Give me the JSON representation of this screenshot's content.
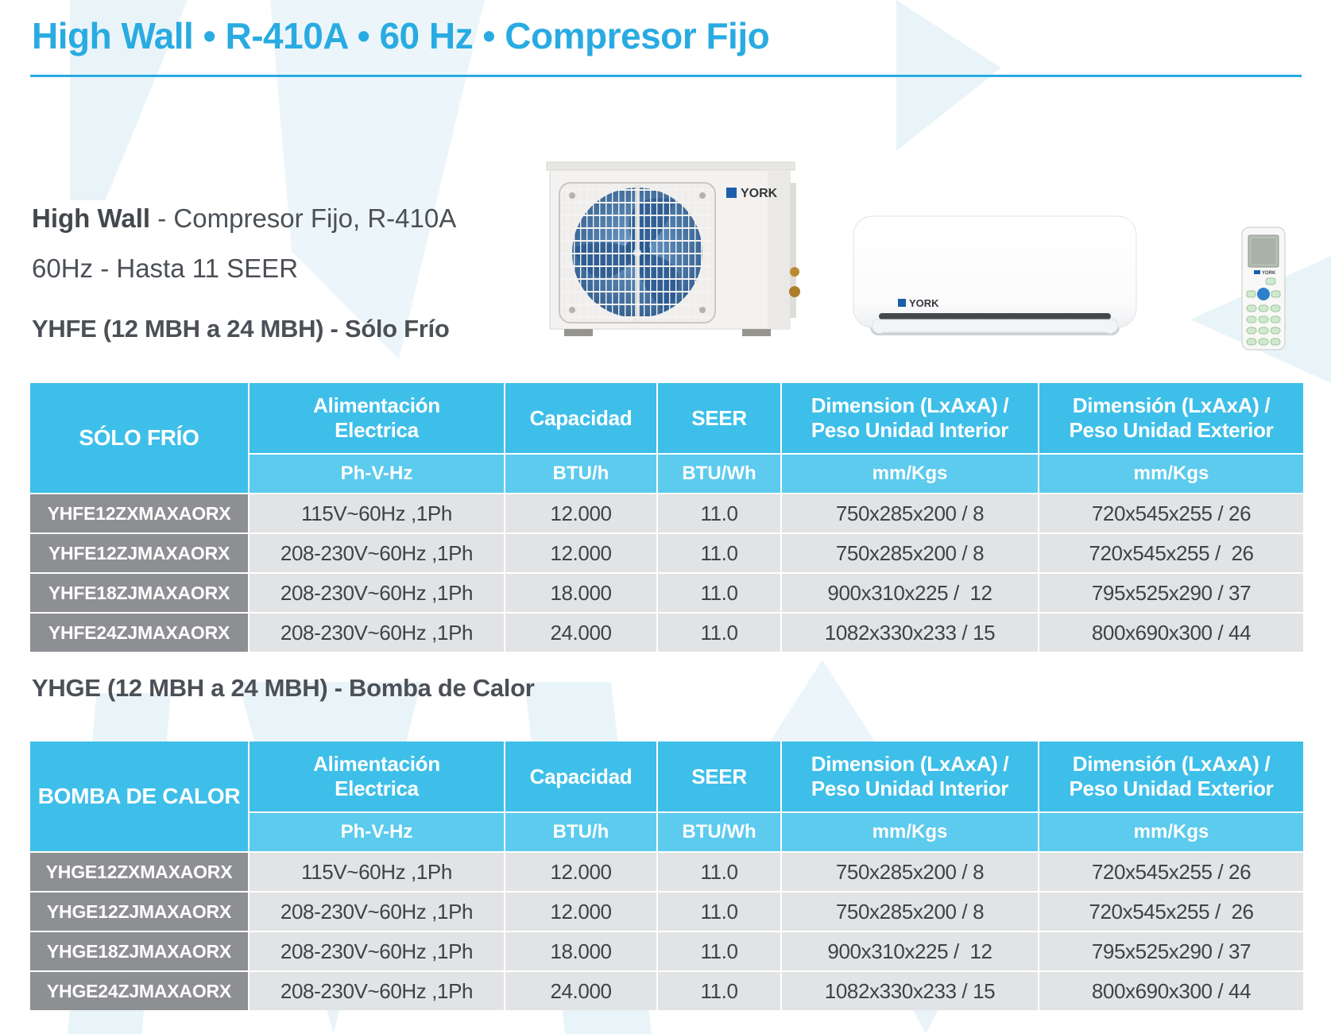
{
  "page": {
    "title": "High Wall • R-410A • 60 Hz • Compresor Fijo"
  },
  "intro": {
    "bold": "High Wall",
    "rest": " - Compresor Fijo, R-410A",
    "line2": "60Hz - Hasta 11 SEER"
  },
  "brand": {
    "logo_text": "YORK"
  },
  "colors": {
    "accent": "#29abe2",
    "header_blue": "#3ebfe9",
    "subheader_blue": "#5ccbee",
    "model_gray": "#8d8f92",
    "row_gray": "#e2e3e4"
  },
  "sections": [
    {
      "heading": "YHFE (12 MBH a 24 MBH) - Sólo Frío",
      "table": {
        "corner": "SÓLO FRÍO",
        "headers": [
          "Alimentación Electrica",
          "Capacidad",
          "SEER",
          "Dimension (LxAxA) / Peso Unidad Interior",
          "Dimensión (LxAxA) / Peso Unidad Exterior"
        ],
        "units": [
          "Ph-V-Hz",
          "BTU/h",
          "BTU/Wh",
          "mm/Kgs",
          "mm/Kgs"
        ],
        "rows": [
          {
            "model": "YHFE12ZXMAXAORX",
            "cells": [
              "115V~60Hz ,1Ph",
              "12.000",
              "11.0",
              "750x285x200 / 8",
              "720x545x255 / 26"
            ]
          },
          {
            "model": "YHFE12ZJMAXAORX",
            "cells": [
              "208-230V~60Hz ,1Ph",
              "12.000",
              "11.0",
              "750x285x200 / 8",
              "720x545x255 /  26"
            ]
          },
          {
            "model": "YHFE18ZJMAXAORX",
            "cells": [
              "208-230V~60Hz ,1Ph",
              "18.000",
              "11.0",
              "900x310x225 /  12",
              "795x525x290 / 37"
            ]
          },
          {
            "model": "YHFE24ZJMAXAORX",
            "cells": [
              "208-230V~60Hz ,1Ph",
              "24.000",
              "11.0",
              "1082x330x233 / 15",
              "800x690x300 / 44"
            ]
          }
        ]
      }
    },
    {
      "heading": "YHGE (12 MBH a 24 MBH) - Bomba de Calor",
      "table": {
        "corner": "BOMBA DE CALOR",
        "headers": [
          "Alimentación Electrica",
          "Capacidad",
          "SEER",
          "Dimension (LxAxA) / Peso Unidad Interior",
          "Dimensión (LxAxA) / Peso Unidad Exterior"
        ],
        "units": [
          "Ph-V-Hz",
          "BTU/h",
          "BTU/Wh",
          "mm/Kgs",
          "mm/Kgs"
        ],
        "rows": [
          {
            "model": "YHGE12ZXMAXAORX",
            "cells": [
              "115V~60Hz ,1Ph",
              "12.000",
              "11.0",
              "750x285x200 / 8",
              "720x545x255 / 26"
            ]
          },
          {
            "model": "YHGE12ZJMAXAORX",
            "cells": [
              "208-230V~60Hz ,1Ph",
              "12.000",
              "11.0",
              "750x285x200 / 8",
              "720x545x255 /  26"
            ]
          },
          {
            "model": "YHGE18ZJMAXAORX",
            "cells": [
              "208-230V~60Hz ,1Ph",
              "18.000",
              "11.0",
              "900x310x225 /  12",
              "795x525x290 / 37"
            ]
          },
          {
            "model": "YHGE24ZJMAXAORX",
            "cells": [
              "208-230V~60Hz ,1Ph",
              "24.000",
              "11.0",
              "1082x330x233 / 15",
              "800x690x300 / 44"
            ]
          }
        ]
      }
    }
  ]
}
